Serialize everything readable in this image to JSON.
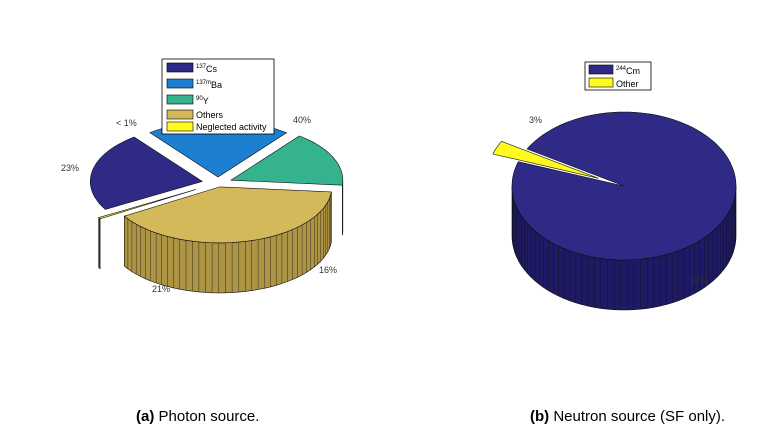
{
  "chart_data": [
    {
      "type": "pie",
      "style": "3d-exploded",
      "caption_label": "(a)",
      "caption_text": " Photon source.",
      "slices": [
        {
          "legend_sup": "137",
          "legend_base": "Cs",
          "value": 23,
          "label": "23%",
          "color": "#2f2a85",
          "side": "#1f1a66"
        },
        {
          "legend_sup": "137m",
          "legend_base": "Ba",
          "value": 21,
          "label": "21%",
          "color": "#1c7fd0",
          "side": "#1565a8"
        },
        {
          "legend_sup": "90",
          "legend_base": "Y",
          "value": 16,
          "label": "16%",
          "color": "#35b28e",
          "side": "#268a6d"
        },
        {
          "legend_sup": "",
          "legend_base": "Others",
          "value": 40,
          "label": "40%",
          "color": "#d3b95a",
          "side": "#ad9545"
        },
        {
          "legend_sup": "",
          "legend_base": "Neglected activity",
          "value": 0.4,
          "label": "< 1%",
          "color": "#fffb1f",
          "side": "#d9d418"
        }
      ]
    },
    {
      "type": "pie",
      "style": "3d-exploded",
      "caption_label": "(b)",
      "caption_text": " Neutron source (SF only).",
      "slices": [
        {
          "legend_sup": "244",
          "legend_base": "Cm",
          "value": 97,
          "label": "97%",
          "color": "#2f2a85",
          "side": "#1f1a66"
        },
        {
          "legend_sup": "",
          "legend_base": "Other",
          "value": 3,
          "label": "3%",
          "color": "#fffb1f",
          "side": "#d9d418"
        }
      ]
    }
  ]
}
